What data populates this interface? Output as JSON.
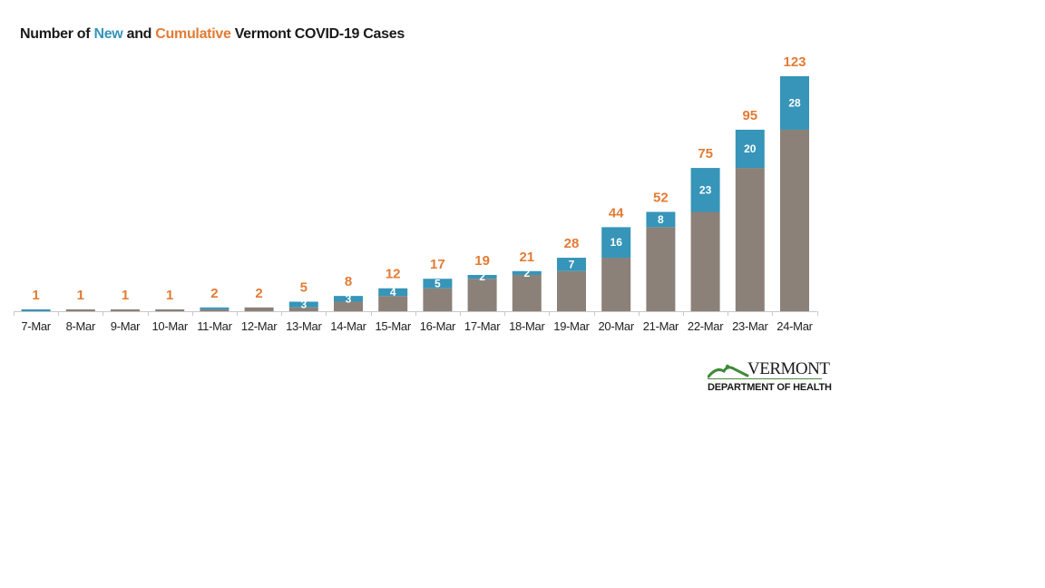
{
  "title": {
    "part1": "Number of ",
    "new_word": "New",
    "part2": " and ",
    "cumulative_word": "Cumulative",
    "part3": " Vermont COVID-19 Cases"
  },
  "colors": {
    "new": "#3695b8",
    "prior_cumulative": "#8b8178",
    "total_label": "#e37b33",
    "axis": "#c8c8c8"
  },
  "logo": {
    "wordmark": "VERMONT",
    "department": "DEPARTMENT OF HEALTH"
  },
  "chart_data": {
    "type": "bar",
    "stacked": true,
    "categories": [
      "7-Mar",
      "8-Mar",
      "9-Mar",
      "10-Mar",
      "11-Mar",
      "12-Mar",
      "13-Mar",
      "14-Mar",
      "15-Mar",
      "16-Mar",
      "17-Mar",
      "18-Mar",
      "19-Mar",
      "20-Mar",
      "21-Mar",
      "22-Mar",
      "23-Mar",
      "24-Mar"
    ],
    "series": [
      {
        "values": [
          0,
          1,
          1,
          1,
          1,
          2,
          2,
          5,
          8,
          12,
          17,
          19,
          21,
          28,
          44,
          52,
          75,
          95
        ]
      },
      {
        "values": [
          1,
          0,
          0,
          0,
          1,
          0,
          3,
          3,
          4,
          5,
          2,
          2,
          7,
          16,
          8,
          23,
          20,
          28
        ]
      }
    ],
    "segment_labels": [
      "",
      "",
      "",
      "",
      "",
      "",
      "3",
      "3",
      "4",
      "5",
      "2",
      "2",
      "7",
      "16",
      "8",
      "23",
      "20",
      "28"
    ],
    "totals": [
      1,
      1,
      1,
      1,
      2,
      2,
      5,
      8,
      12,
      17,
      19,
      21,
      28,
      44,
      52,
      75,
      95,
      123
    ],
    "ylim": [
      0,
      123
    ],
    "grid": false
  }
}
